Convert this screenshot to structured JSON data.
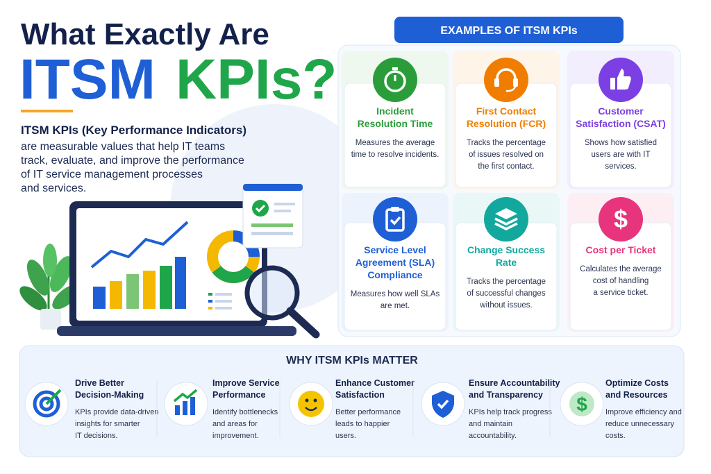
{
  "title": {
    "line1": "What Exactly Are",
    "line2a": "ITSM",
    "line2b": "KPIs?"
  },
  "intro": {
    "lead": "ITSM KPIs (Key Performance Indicators)",
    "lines": [
      "are measurable values that help IT teams",
      "track, evaluate, and improve the performance",
      "of IT service management processes",
      "and services."
    ]
  },
  "examples": {
    "heading": "EXAMPLES OF ITSM KPIs",
    "cards": [
      {
        "title": [
          "Incident",
          "Resolution Time"
        ],
        "desc": [
          "Measures the average",
          "time to resolve incidents."
        ]
      },
      {
        "title": [
          "First Contact",
          "Resolution (FCR)"
        ],
        "desc": [
          "Tracks the percentage",
          "of issues resolved on",
          "the first contact."
        ]
      },
      {
        "title": [
          "Customer",
          "Satisfaction (CSAT)"
        ],
        "desc": [
          "Shows how satisfied",
          "users are with IT",
          "services."
        ]
      },
      {
        "title": [
          "Service Level",
          "Agreement (SLA)",
          "Compliance"
        ],
        "desc": [
          "Measures how well SLAs",
          "are met."
        ]
      },
      {
        "title": [
          "Change Success",
          "Rate"
        ],
        "desc": [
          "Tracks the percentage",
          "of successful changes",
          "without issues."
        ]
      },
      {
        "title": [
          "Cost per Ticket"
        ],
        "desc": [
          "Calculates the average",
          "cost of handling",
          "a service ticket."
        ]
      }
    ]
  },
  "why": {
    "heading": "WHY ITSM KPIs MATTER",
    "items": [
      {
        "title": [
          "Drive Better",
          "Decision-Making"
        ],
        "desc": [
          "KPIs provide data-driven",
          "insights for smarter",
          "IT decisions."
        ]
      },
      {
        "title": [
          "Improve Service",
          "Performance"
        ],
        "desc": [
          "Identify bottlenecks",
          "and areas for",
          "improvement."
        ]
      },
      {
        "title": [
          "Enhance Customer",
          "Satisfaction"
        ],
        "desc": [
          "Better performance",
          "leads to happier",
          "users."
        ]
      },
      {
        "title": [
          "Ensure Accountability",
          "and Transparency"
        ],
        "desc": [
          "KPIs help track progress",
          "and maintain",
          "accountability."
        ]
      },
      {
        "title": [
          "Optimize Costs",
          "and Resources"
        ],
        "desc": [
          "Improve efficiency and",
          "reduce unnecessary",
          "costs."
        ]
      }
    ]
  }
}
